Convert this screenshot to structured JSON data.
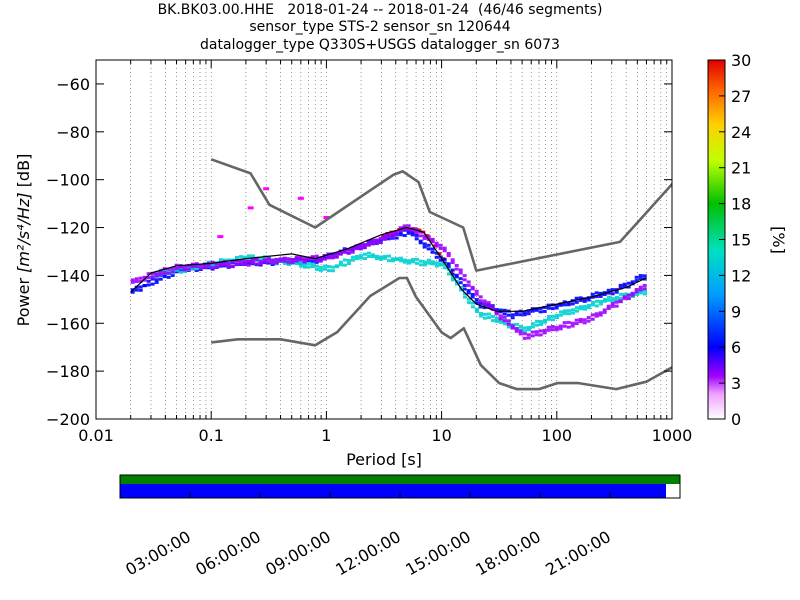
{
  "chart_data": [
    {
      "type": "heatmap",
      "title_lines": [
        "BK.BK03.00.HHE   2018-01-24 -- 2018-01-24  (46/46 segments)",
        "sensor_type STS-2 sensor_sn 120644",
        "datalogger_type Q330S+USGS datalogger_sn 6073"
      ],
      "xlabel": "Period [s]",
      "ylabel_prefix": "Power ",
      "ylabel_math": "[m²/s⁴/Hz]",
      "ylabel_suffix": " [dB]",
      "x_scale": "log",
      "xlim": [
        0.01,
        1000
      ],
      "ylim": [
        -200,
        -50
      ],
      "x_ticks": [
        0.01,
        0.1,
        1,
        10,
        100,
        1000
      ],
      "x_tick_labels": [
        "0.01",
        "0.1",
        "1",
        "10",
        "100",
        "1000"
      ],
      "y_ticks": [
        -200,
        -180,
        -160,
        -140,
        -120,
        -100,
        -80,
        -60
      ],
      "y_tick_labels": [
        "−200",
        "−180",
        "−160",
        "−140",
        "−120",
        "−100",
        "−80",
        "−60"
      ],
      "grid": "dotted-vertical",
      "colorbar": {
        "label": "[%]",
        "range": [
          0,
          30
        ],
        "ticks": [
          0,
          3,
          6,
          9,
          12,
          15,
          18,
          21,
          24,
          27,
          30
        ],
        "tick_labels": [
          "0",
          "3",
          "6",
          "9",
          "12",
          "15",
          "18",
          "21",
          "24",
          "27",
          "30"
        ]
      },
      "series": [
        {
          "role": "high-noise-model",
          "color": "#666666",
          "x": [
            0.1,
            0.22,
            0.32,
            0.8,
            3.8,
            4.6,
            6.3,
            7.9,
            15.4,
            20,
            354,
            10000
          ],
          "y": [
            -91.5,
            -97.4,
            -110.5,
            -120,
            -98,
            -96.5,
            -101,
            -113.5,
            -120,
            -138,
            -126,
            -48.5
          ]
        },
        {
          "role": "low-noise-model",
          "color": "#666666",
          "x": [
            0.1,
            0.17,
            0.4,
            0.8,
            1.24,
            2.4,
            4.3,
            5,
            6,
            10,
            12,
            15.6,
            21.9,
            31.6,
            45,
            70,
            101,
            154,
            328,
            600,
            10000
          ],
          "y": [
            -168,
            -166.7,
            -166.7,
            -169.2,
            -163.7,
            -148.6,
            -141.1,
            -141.1,
            -149,
            -163.8,
            -166.2,
            -162.1,
            -177.5,
            -185,
            -187.5,
            -187.5,
            -185,
            -185,
            -187.5,
            -184.4,
            -151.5
          ]
        },
        {
          "role": "mode",
          "color": "#000000",
          "x": [
            0.02,
            0.03,
            0.05,
            0.1,
            0.2,
            0.5,
            0.8,
            1.5,
            3,
            5,
            7,
            10,
            15,
            20,
            30,
            50,
            100,
            200,
            400,
            600
          ],
          "y": [
            -147,
            -139,
            -136,
            -135,
            -133,
            -131,
            -133,
            -129,
            -123,
            -120,
            -122,
            -133,
            -146,
            -152,
            -155,
            -155,
            -152,
            -149,
            -145,
            -141
          ]
        }
      ],
      "density_bands": [
        {
          "label": "peak",
          "color": "#d40000",
          "x": [
            3,
            5,
            7,
            10,
            12
          ],
          "y": [
            -123,
            -120,
            -122,
            -133,
            -139
          ]
        },
        {
          "label": "high",
          "color": "#0000ff",
          "x": [
            0.02,
            0.05,
            0.2,
            0.8,
            2,
            5,
            10,
            20,
            40,
            100,
            300,
            600
          ],
          "y": [
            -146,
            -137,
            -134,
            -133,
            -127,
            -121,
            -133,
            -151,
            -156,
            -152,
            -146,
            -139
          ]
        },
        {
          "label": "medium",
          "color": "#00d0d0",
          "x": [
            0.03,
            0.2,
            0.5,
            1,
            2,
            10,
            20,
            50,
            100,
            300,
            600
          ],
          "y": [
            -139,
            -132,
            -134,
            -137,
            -131,
            -135,
            -155,
            -162,
            -156,
            -149,
            -146
          ]
        },
        {
          "label": "low",
          "color": "#a000ff",
          "x": [
            0.02,
            0.05,
            0.2,
            1,
            3,
            5,
            10,
            20,
            50,
            200,
            600
          ],
          "y": [
            -142,
            -136,
            -134,
            -132,
            -124,
            -119,
            -128,
            -148,
            -165,
            -157,
            -143
          ]
        }
      ],
      "outlier_branch": {
        "color": "#ff00ff",
        "x": [
          0.12,
          0.22,
          0.3,
          0.6,
          1
        ],
        "y": [
          -124,
          -112,
          -104,
          -108,
          -116
        ]
      }
    },
    {
      "type": "timeline",
      "x_tick_labels": [
        "03:00:00",
        "06:00:00",
        "09:00:00",
        "12:00:00",
        "15:00:00",
        "18:00:00",
        "21:00:00"
      ],
      "tracks": [
        {
          "role": "available data",
          "color": "#008000",
          "coverage": 1.0
        },
        {
          "role": "processed segments",
          "color": "#0000ff",
          "coverage": 0.975
        }
      ]
    }
  ]
}
